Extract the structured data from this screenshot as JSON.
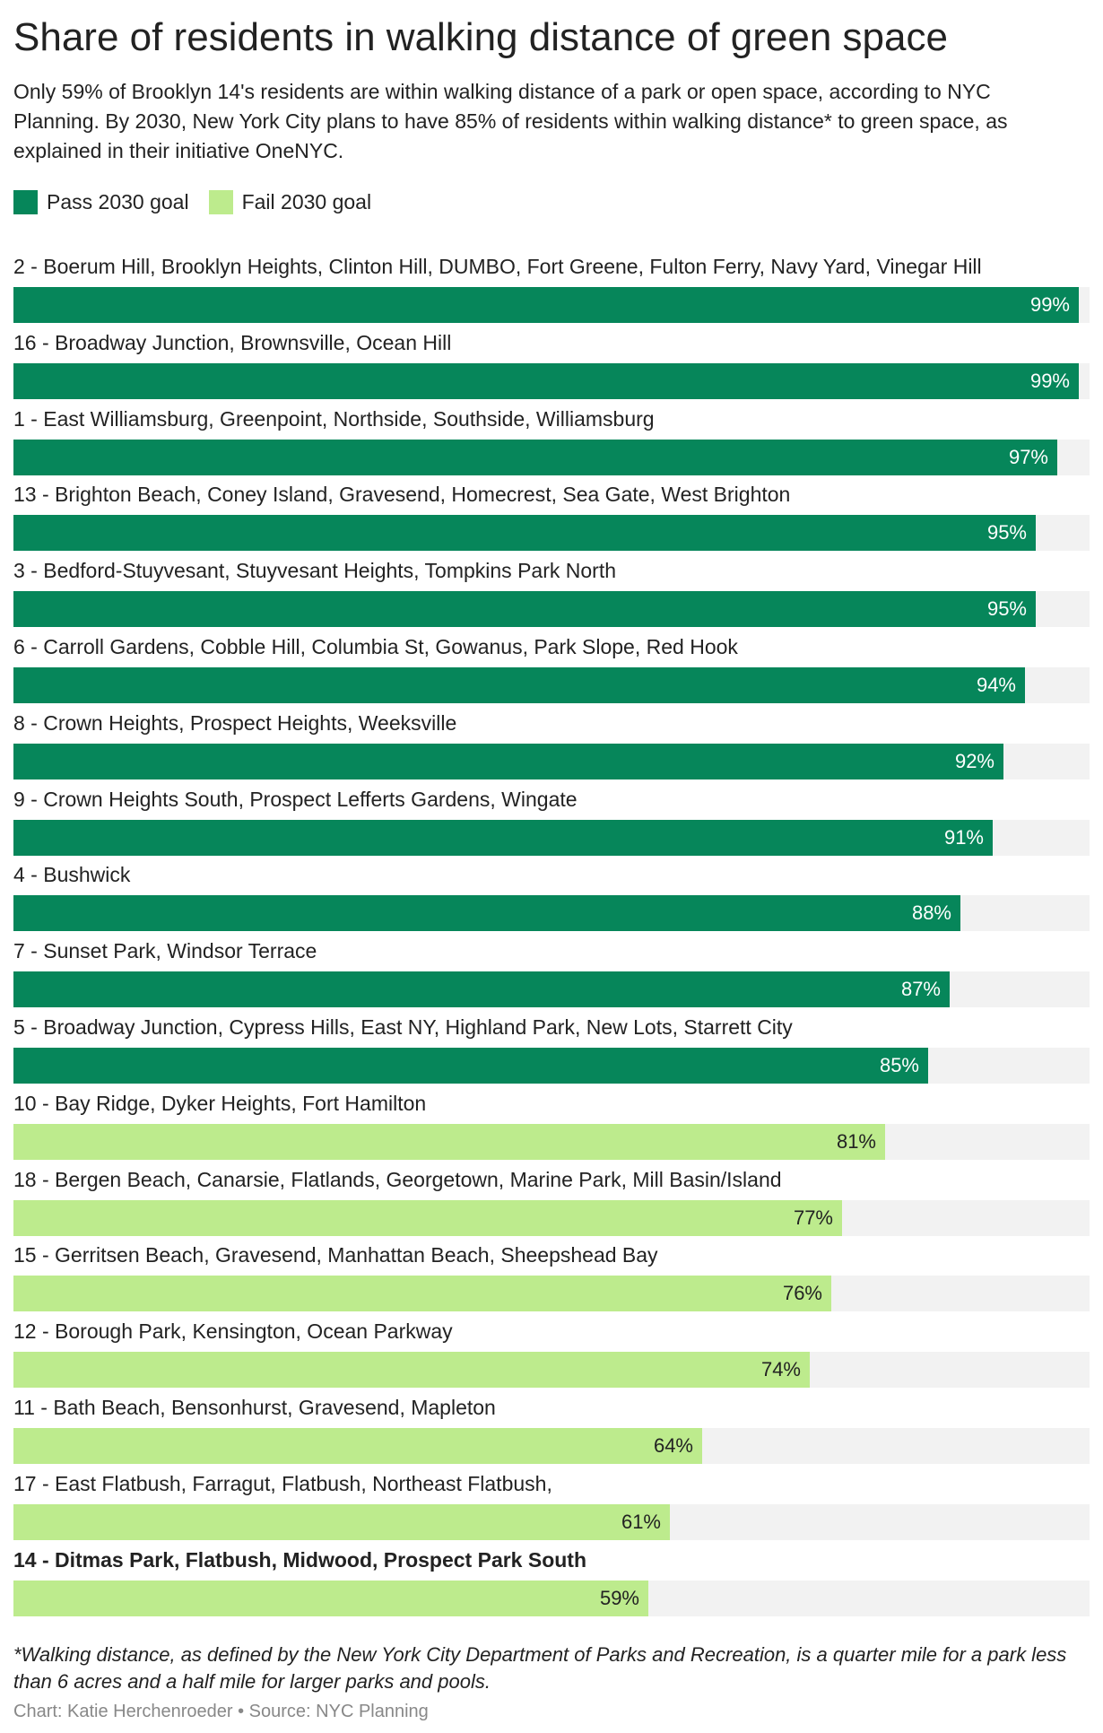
{
  "title": "Share of residents in walking distance of green space",
  "subtitle": "Only 59% of Brooklyn 14's residents are within walking distance of a park or open space, according to NYC Planning. By 2030, New York City plans to have 85% of residents within walking distance* to green space, as explained in their initiative OneNYC.",
  "legend": {
    "pass": {
      "label": "Pass 2030 goal",
      "color": "#06865a"
    },
    "fail": {
      "label": "Fail 2030 goal",
      "color": "#bdeb8d"
    }
  },
  "colors": {
    "track": "#f2f2f2",
    "pass_text": "#ffffff",
    "fail_text": "#222222"
  },
  "chart_data": {
    "type": "bar",
    "orientation": "horizontal",
    "xlim": [
      0,
      100
    ],
    "unit": "%",
    "categories": [
      "2 - Boerum Hill, Brooklyn Heights, Clinton Hill, DUMBO, Fort Greene, Fulton Ferry, Navy Yard, Vinegar Hill",
      "16 - Broadway Junction, Brownsville, Ocean Hill",
      "1 - East Williamsburg, Greenpoint, Northside, Southside, Williamsburg",
      "13 - Brighton Beach, Coney Island, Gravesend, Homecrest, Sea Gate, West Brighton",
      "3 - Bedford-Stuyvesant, Stuyvesant Heights, Tompkins Park North",
      "6 - Carroll Gardens, Cobble Hill, Columbia St, Gowanus, Park Slope, Red Hook",
      "8 - Crown Heights, Prospect Heights, Weeksville",
      "9 - Crown Heights South, Prospect Lefferts Gardens, Wingate",
      "4 - Bushwick",
      "7 - Sunset Park, Windsor Terrace",
      "5 - Broadway Junction, Cypress Hills, East NY, Highland Park, New Lots, Starrett City",
      "10 - Bay Ridge, Dyker Heights, Fort Hamilton",
      "18 - Bergen Beach, Canarsie, Flatlands, Georgetown, Marine Park, Mill Basin/Island",
      "15 - Gerritsen Beach, Gravesend, Manhattan Beach, Sheepshead Bay",
      "12 - Borough Park, Kensington, Ocean Parkway",
      "11 - Bath Beach, Bensonhurst, Gravesend, Mapleton",
      "17 - East Flatbush, Farragut, Flatbush, Northeast Flatbush,",
      "14 - Ditmas Park, Flatbush, Midwood, Prospect Park South"
    ],
    "values": [
      99,
      99,
      97,
      95,
      95,
      94,
      92,
      91,
      88,
      87,
      85,
      81,
      77,
      76,
      74,
      64,
      61,
      59
    ],
    "labels": [
      "99%",
      "99%",
      "97%",
      "95%",
      "95%",
      "94%",
      "92%",
      "91%",
      "88%",
      "87%",
      "85%",
      "81%",
      "77%",
      "76%",
      "74%",
      "64%",
      "61%",
      "59%"
    ],
    "status": [
      "pass",
      "pass",
      "pass",
      "pass",
      "pass",
      "pass",
      "pass",
      "pass",
      "pass",
      "pass",
      "pass",
      "fail",
      "fail",
      "fail",
      "fail",
      "fail",
      "fail",
      "fail"
    ],
    "highlighted": "14 - Ditmas Park, Flatbush, Midwood, Prospect Park South",
    "legend_position": "top-left"
  },
  "footnote": "*Walking distance, as defined by the New York City Department of Parks and Recreation, is a quarter mile for a park less than 6 acres and a half mile for larger parks and pools.",
  "credit": "Chart: Katie Herchenroeder • Source: NYC Planning"
}
